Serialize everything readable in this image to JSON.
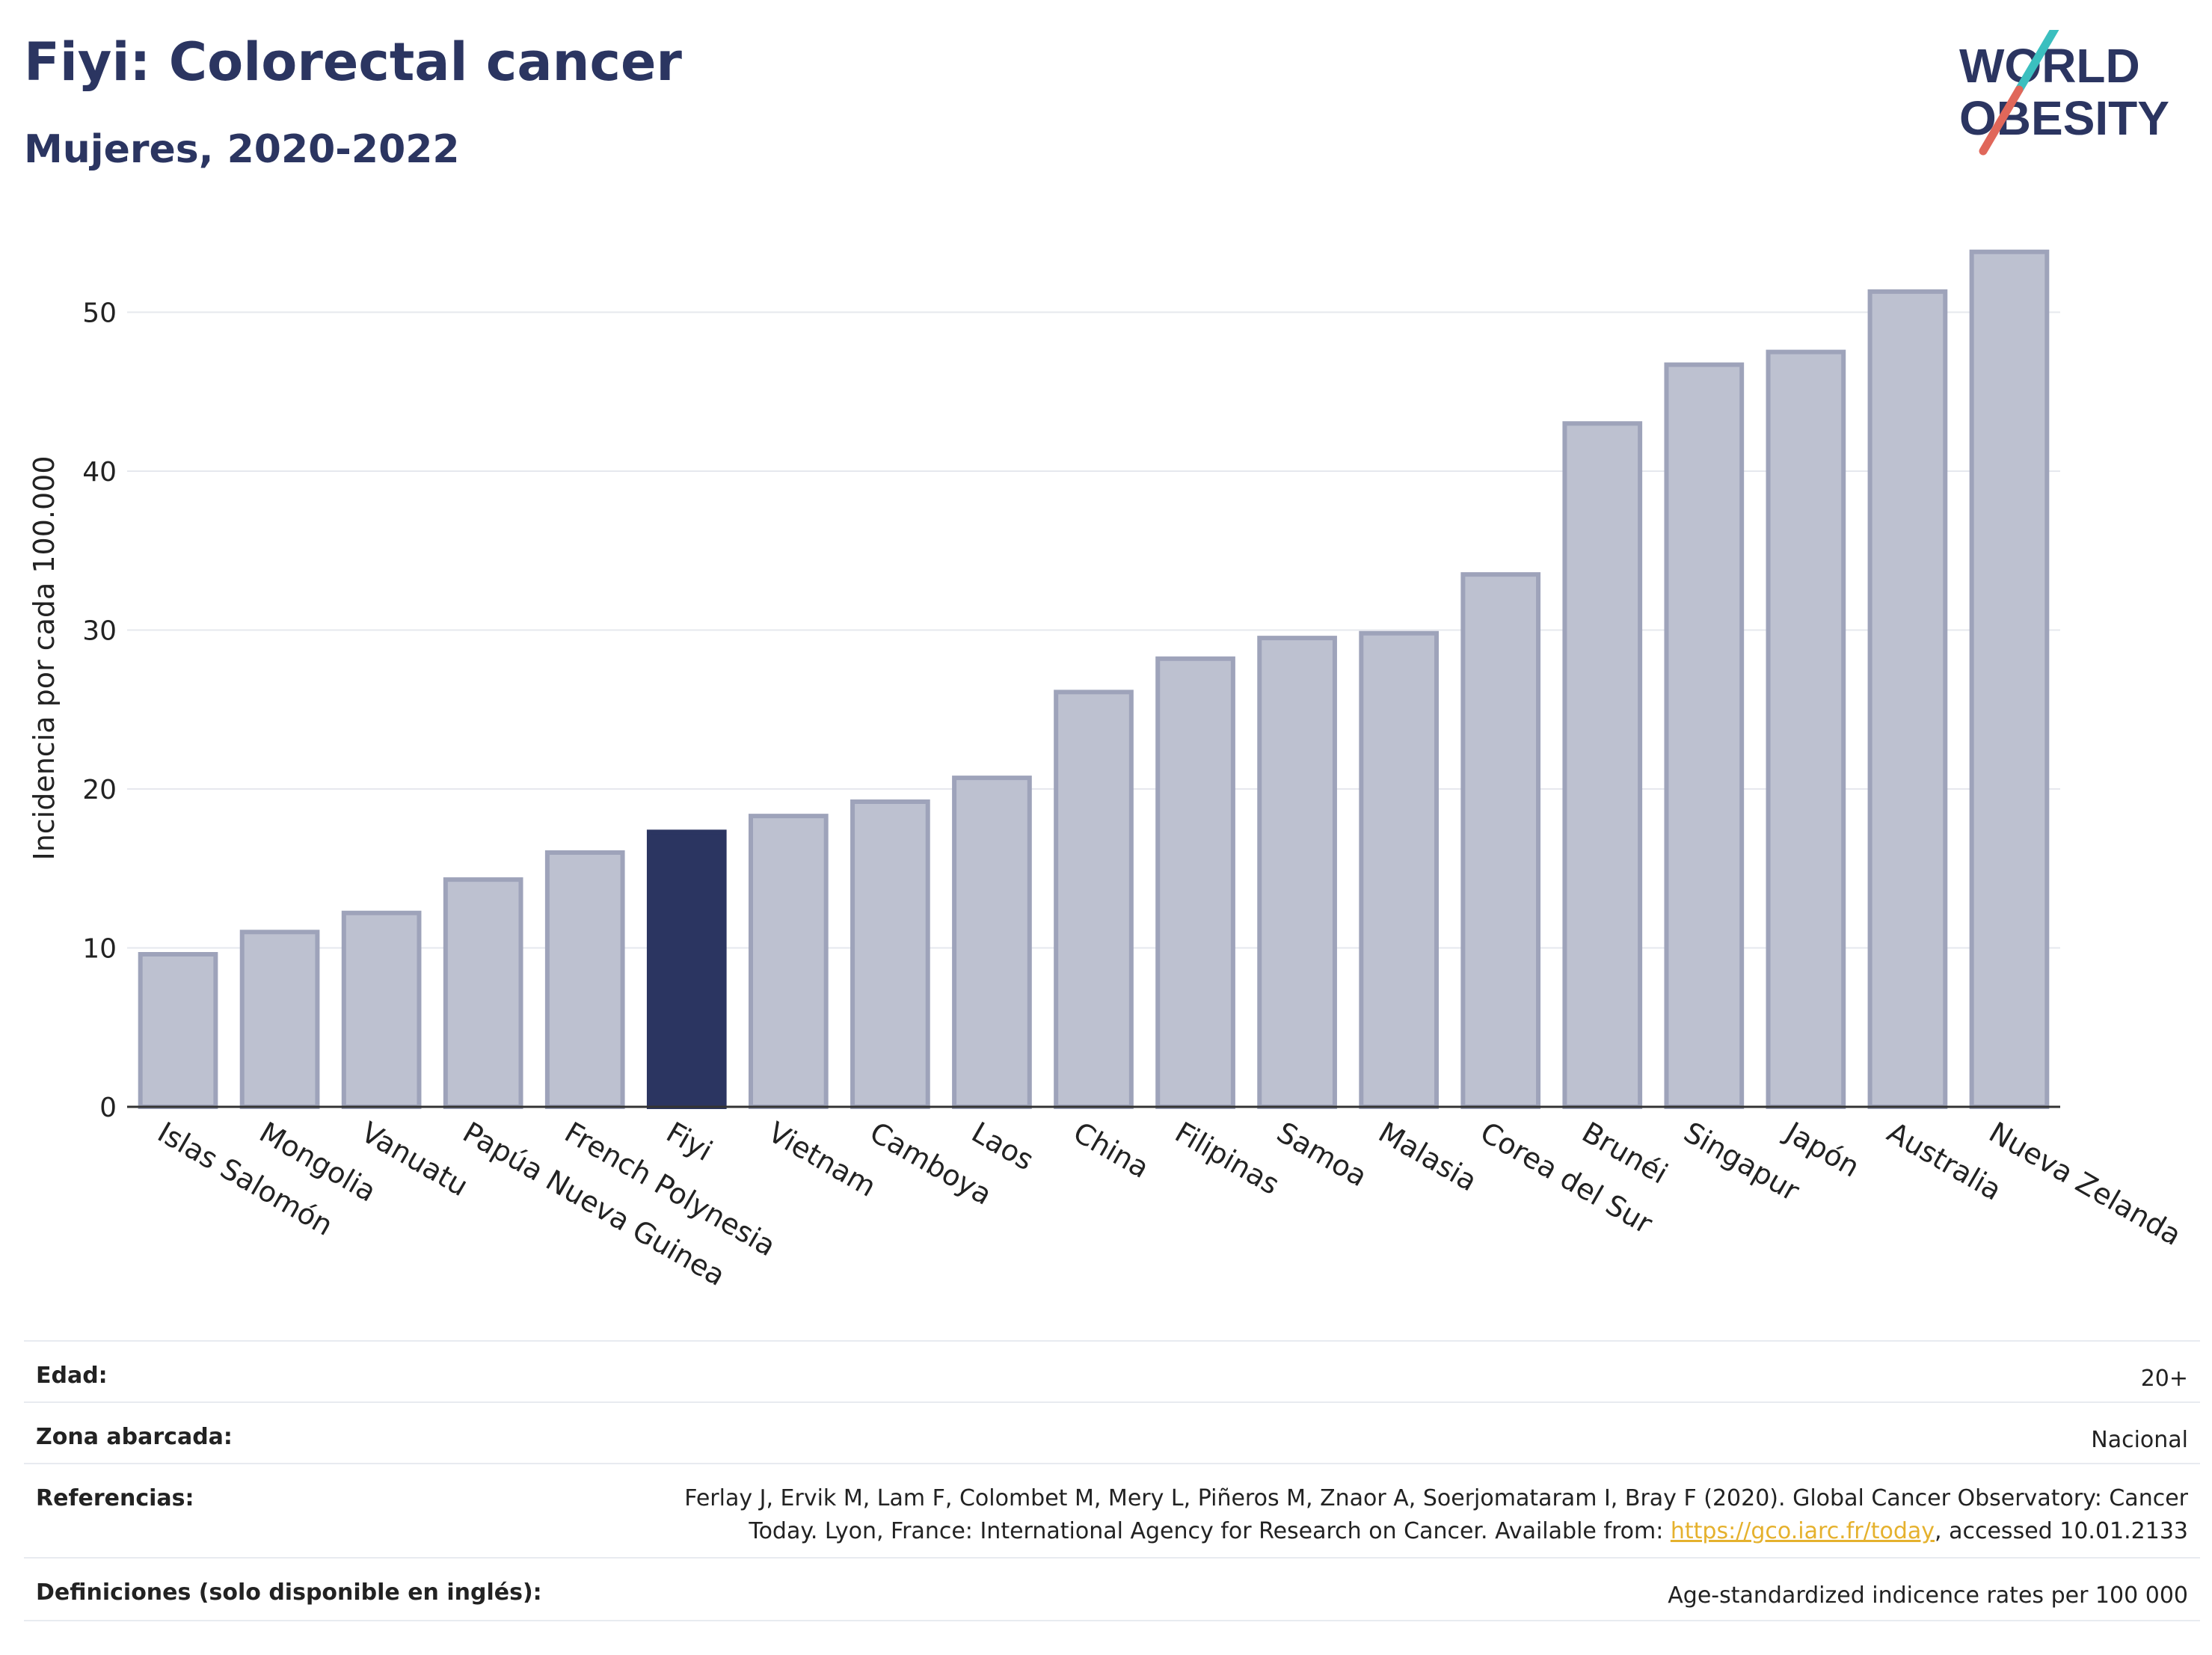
{
  "header": {
    "title": "Fiyi: Colorectal cancer",
    "subtitle": "Mujeres, 2020-2022"
  },
  "logo": {
    "line1": "WORLD",
    "line2": "OBESITY",
    "colors": {
      "text": "#2b3561",
      "slash_teal": "#3bbfbf",
      "slash_red": "#e0675a"
    }
  },
  "colors": {
    "bar": "#bdc1d0",
    "bar_stroke": "#9ea3ba",
    "highlight": "#2b3561",
    "grid": "#e6e8ee",
    "axis": "#333333",
    "text": "#222222"
  },
  "chart_data": {
    "type": "bar",
    "ylabel": "Incidencia por cada 100.000",
    "ylim": [
      0,
      55
    ],
    "yticks": [
      0,
      10,
      20,
      30,
      40,
      50
    ],
    "grid": true,
    "highlight": "Fiyi",
    "categories": [
      "Islas Salomón",
      "Mongolia",
      "Vanuatu",
      "Papúa Nueva Guinea",
      "French Polynesia",
      "Fiyi",
      "Vietnam",
      "Camboya",
      "Laos",
      "China",
      "Filipinas",
      "Samoa",
      "Malasia",
      "Corea del Sur",
      "Brunéi",
      "Singapur",
      "Japón",
      "Australia",
      "Nueva Zelanda"
    ],
    "values": [
      9.6,
      11.0,
      12.2,
      14.3,
      16.0,
      17.3,
      18.3,
      19.2,
      20.7,
      26.1,
      28.2,
      29.5,
      29.8,
      33.5,
      43.0,
      46.7,
      47.5,
      51.3,
      53.8
    ]
  },
  "meta": {
    "rows": [
      {
        "label": "Edad:",
        "value": "20+"
      },
      {
        "label": "Zona abarcada:",
        "value": "Nacional"
      },
      {
        "label": "Referencias:",
        "value_line1": "Ferlay J, Ervik M, Lam F, Colombet M, Mery L, Piñeros M, Znaor A, Soerjomataram I, Bray F (2020). Global Cancer Observatory: Cancer",
        "value_line2_pre": "Today. Lyon, France: International Agency for Research on Cancer. Available from: ",
        "link": "https://gco.iarc.fr/today",
        "value_line2_post": ", accessed 10.01.2133"
      },
      {
        "label": "Definiciones (solo disponible en inglés):",
        "value": "Age-standardized indicence rates per 100 000"
      }
    ]
  }
}
